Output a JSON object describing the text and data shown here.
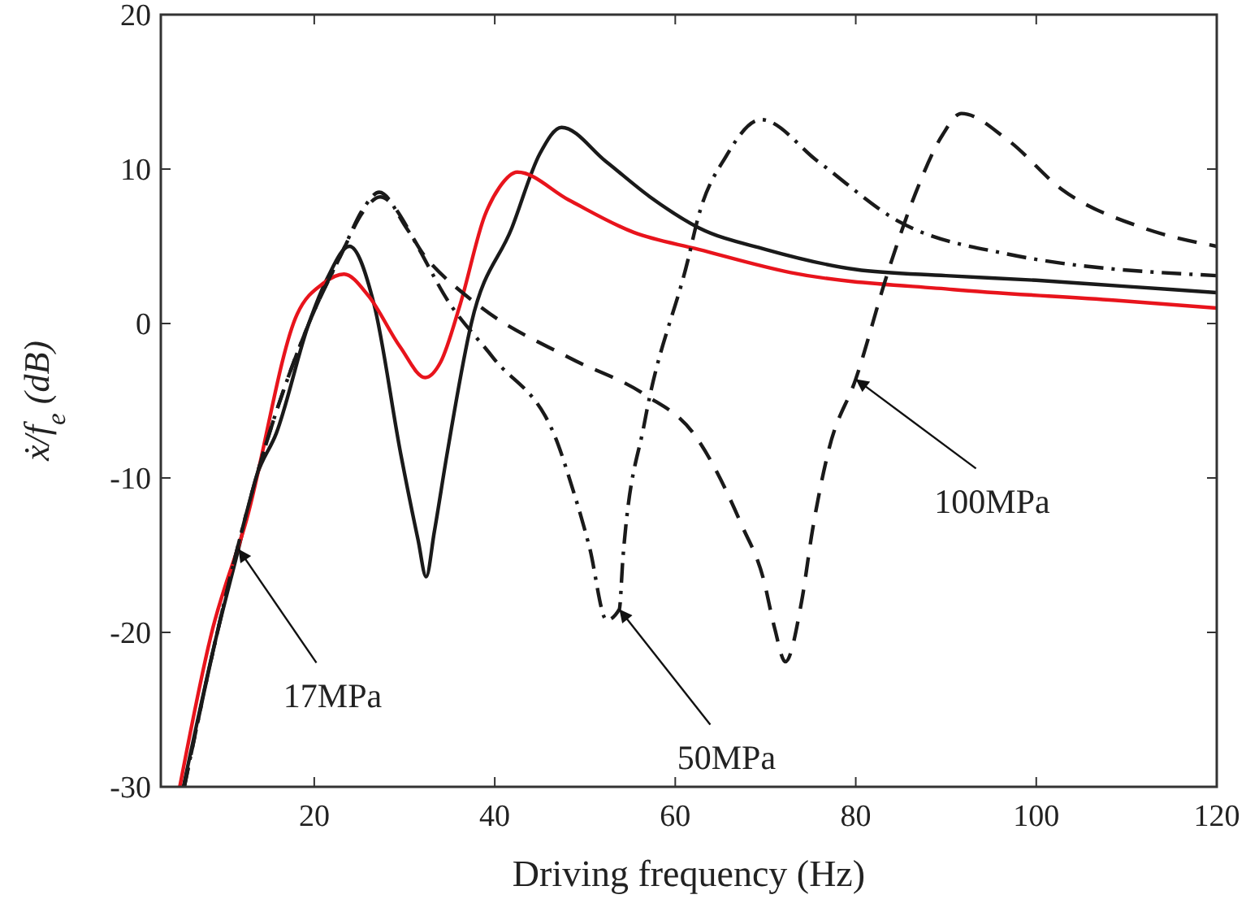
{
  "chart_data": {
    "type": "line",
    "xlabel": "Driving frequency (Hz)",
    "ylabel": "ẋ/f$_{e}$ (dB)",
    "xlim": [
      3,
      120
    ],
    "ylim": [
      -30,
      20
    ],
    "xticks": [
      20,
      40,
      60,
      80,
      100,
      120
    ],
    "yticks": [
      -30,
      -20,
      -10,
      0,
      10,
      20
    ],
    "grid": false,
    "marker": "none",
    "series": [
      {
        "color": "#1a1a1a",
        "line_style": "solid",
        "x": [
          5.5,
          9.1,
          11.6,
          13.6,
          15.8,
          19.4,
          21.5,
          23.9,
          26.6,
          29.6,
          31.5,
          32.4,
          33.3,
          34.7,
          37.4,
          41.9,
          45,
          47.4,
          52.3,
          57.2,
          62.6,
          70,
          80,
          90,
          100,
          110,
          120
        ],
        "values": [
          -30,
          -20.4,
          -14.6,
          -9.9,
          -7.1,
          0,
          3,
          5,
          1.3,
          -8.5,
          -14,
          -16.4,
          -13.5,
          -8.5,
          0,
          6.2,
          11,
          12.7,
          10.5,
          8.2,
          6.2,
          4.8,
          3.5,
          3.1,
          2.8,
          2.4,
          2
        ]
      },
      {
        "color": "#e8141c",
        "line_style": "solid",
        "x": [
          5.1,
          8.6,
          12.5,
          18.1,
          21,
          23.3,
          26,
          29.5,
          32.3,
          34,
          36.2,
          38.9,
          40.5,
          42.5,
          48.2,
          55.4,
          62.6,
          72.8,
          90.8,
          108.8,
          120
        ],
        "values": [
          -30,
          -20.1,
          -12.7,
          0.6,
          2.6,
          3.2,
          1.8,
          -1.5,
          -3.5,
          -2.5,
          1.3,
          7,
          8.8,
          9.8,
          8,
          5.9,
          4.8,
          3.3,
          2.2,
          1.5,
          1
        ]
      },
      {
        "color": "#1a1a1a",
        "line_style": "dashdot",
        "x": [
          5.6,
          9.1,
          13.6,
          19.4,
          23,
          25.5,
          27.2,
          30.2,
          35,
          39.8,
          47,
          48.2,
          50.5,
          52.4,
          53.8,
          54.2,
          56.6,
          61.4,
          62.6,
          65.6,
          69.5,
          75.8,
          84.8,
          96.8,
          120
        ],
        "values": [
          -30,
          -20.4,
          -9.9,
          0,
          4.5,
          7.5,
          8.5,
          6.2,
          1.3,
          -2.2,
          -7.8,
          -9.9,
          -14.5,
          -19.2,
          -18.5,
          -15.2,
          -6.4,
          4.1,
          7,
          10.8,
          13.2,
          10.5,
          6.6,
          4.5,
          3.1
        ]
      },
      {
        "color": "#1a1a1a",
        "line_style": "dashed",
        "x": [
          5.6,
          9.1,
          13.6,
          19.4,
          23,
          25.5,
          27.3,
          32.6,
          38.6,
          48.2,
          56.6,
          62,
          67.4,
          69.8,
          71,
          72.2,
          74,
          75.2,
          77,
          80,
          83.6,
          86.6,
          89.6,
          91.7,
          96.8,
          102.8,
          111.8,
          120
        ],
        "values": [
          -30,
          -20.4,
          -9.9,
          0,
          4.5,
          7.3,
          8.2,
          4.1,
          1,
          -2.2,
          -4.6,
          -7.1,
          -13.1,
          -16.6,
          -19.7,
          -21.9,
          -18,
          -13.4,
          -8.2,
          -3.6,
          3.4,
          8.4,
          12.2,
          13.6,
          11.9,
          8.7,
          6.2,
          5
        ]
      }
    ],
    "annotations": [
      {
        "text": "17MPa",
        "x": 11.6,
        "y": -14.6
      },
      {
        "text": "50MPa",
        "x": 53.8,
        "y": -18.5
      },
      {
        "text": "100MPa",
        "x": 80,
        "y": -3.6
      }
    ]
  }
}
